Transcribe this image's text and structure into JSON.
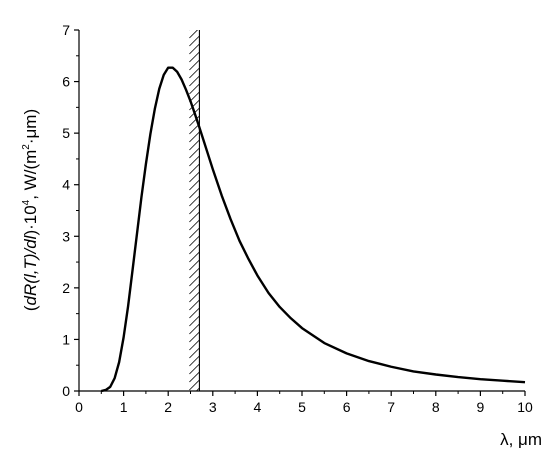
{
  "chart_data": {
    "type": "line",
    "title": "",
    "xlabel": "λ, μm",
    "ylabel": {
      "text_part1": "(",
      "text_italic": "dR(l,T)/dl",
      "text_part2": ")·10",
      "exp1": "4",
      "text_part3": ", W/(m",
      "exp2": "2",
      "text_part4": "·μm)"
    },
    "xlim": [
      0,
      10
    ],
    "ylim": [
      0,
      7
    ],
    "xticks": [
      0,
      1,
      2,
      3,
      4,
      5,
      6,
      7,
      8,
      9,
      10
    ],
    "yticks": [
      0,
      1,
      2,
      3,
      4,
      5,
      6,
      7
    ],
    "grid": false,
    "series": [
      {
        "x": [
          0.5,
          0.6,
          0.7,
          0.8,
          0.9,
          1.0,
          1.1,
          1.2,
          1.3,
          1.4,
          1.5,
          1.6,
          1.7,
          1.8,
          1.9,
          2.0,
          2.1,
          2.2,
          2.3,
          2.4,
          2.5,
          2.6,
          2.7,
          2.8,
          2.9,
          3.0,
          3.2,
          3.4,
          3.6,
          3.8,
          4.0,
          4.25,
          4.5,
          4.75,
          5.0,
          5.5,
          6.0,
          6.5,
          7.0,
          7.5,
          8.0,
          8.5,
          9.0,
          9.5,
          10.0
        ],
        "y": [
          0.0,
          0.02,
          0.08,
          0.25,
          0.56,
          1.04,
          1.64,
          2.34,
          3.05,
          3.76,
          4.4,
          4.98,
          5.47,
          5.86,
          6.13,
          6.27,
          6.27,
          6.19,
          6.04,
          5.84,
          5.62,
          5.37,
          5.11,
          4.84,
          4.57,
          4.3,
          3.79,
          3.33,
          2.91,
          2.56,
          2.24,
          1.9,
          1.63,
          1.41,
          1.22,
          0.93,
          0.73,
          0.58,
          0.47,
          0.38,
          0.32,
          0.27,
          0.23,
          0.2,
          0.17
        ]
      }
    ],
    "marker_line": {
      "x": 2.7,
      "hatch": true
    },
    "line_color": "#000000"
  }
}
